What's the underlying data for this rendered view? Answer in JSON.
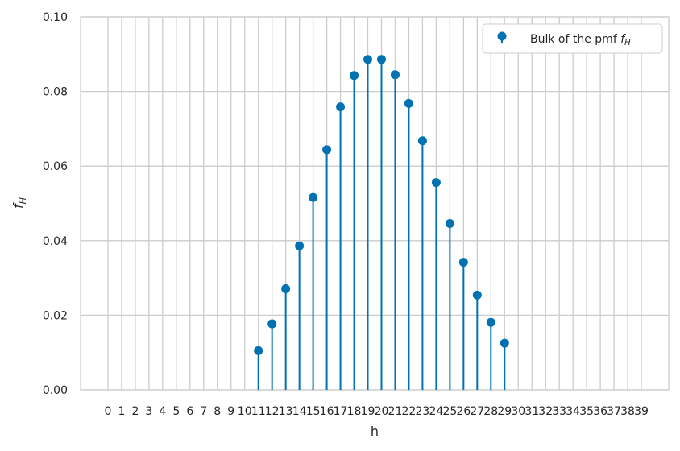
{
  "chart_data": {
    "type": "stem",
    "x_ticks": [
      0,
      1,
      2,
      3,
      4,
      5,
      6,
      7,
      8,
      9,
      10,
      11,
      12,
      13,
      14,
      15,
      16,
      17,
      18,
      19,
      20,
      21,
      22,
      23,
      24,
      25,
      26,
      27,
      28,
      29,
      30,
      31,
      32,
      33,
      34,
      35,
      36,
      37,
      38,
      39
    ],
    "x": [
      11,
      12,
      13,
      14,
      15,
      16,
      17,
      18,
      19,
      20,
      21,
      22,
      23,
      24,
      25,
      26,
      27,
      28,
      29
    ],
    "values": [
      0.0105,
      0.0177,
      0.0271,
      0.0386,
      0.0516,
      0.0644,
      0.0759,
      0.0843,
      0.0886,
      0.0886,
      0.0845,
      0.0768,
      0.0668,
      0.0556,
      0.0446,
      0.0342,
      0.0254,
      0.0181,
      0.0125
    ],
    "y_ticks": [
      0.0,
      0.02,
      0.04,
      0.06,
      0.08,
      0.1
    ],
    "y_tick_labels": [
      "0.00",
      "0.02",
      "0.04",
      "0.06",
      "0.08",
      "0.10"
    ],
    "xlim": [
      -2,
      41
    ],
    "ylim": [
      0,
      0.1
    ],
    "xlabel": "h",
    "ylabel": "f_H",
    "legend": {
      "label": "Bulk of the pmf f_H",
      "placement": "top-right"
    },
    "grid": true,
    "colors": {
      "series": "#0072b2",
      "grid": "#cccccc",
      "frame": "#cccccc",
      "text": "#262626"
    }
  }
}
